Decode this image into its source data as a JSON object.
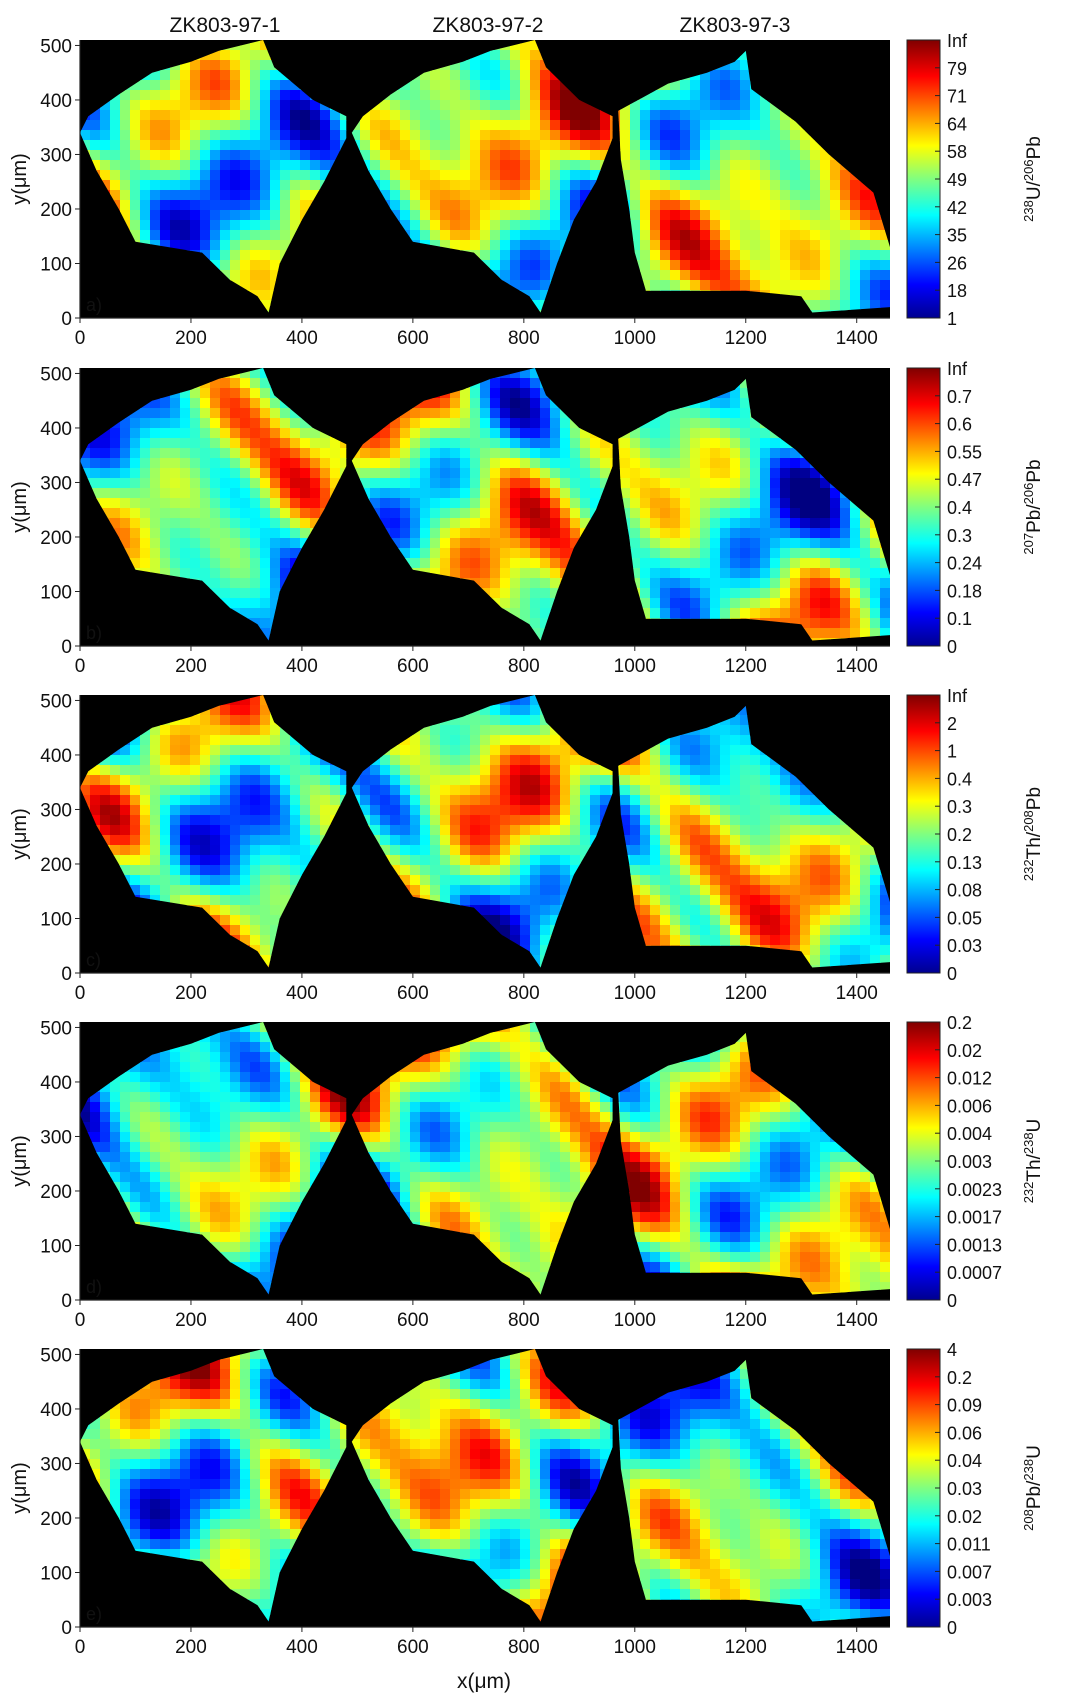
{
  "figure": {
    "sample_titles": [
      "ZK803-97-1",
      "ZK803-97-2",
      "ZK803-97-3"
    ],
    "xlabel": "x(μm)",
    "ylabel": "y(μm)",
    "x_ticks": [
      0,
      200,
      400,
      600,
      800,
      1000,
      1200,
      1400
    ],
    "y_ticks": [
      0,
      100,
      200,
      300,
      400,
      500
    ],
    "xlim": [
      0,
      1460
    ],
    "ylim": [
      0,
      510
    ],
    "background_color": "#000000",
    "colormap": "jet",
    "grain_outlines": [
      [
        [
          0,
          340
        ],
        [
          15,
          370
        ],
        [
          70,
          410
        ],
        [
          130,
          450
        ],
        [
          200,
          470
        ],
        [
          250,
          490
        ],
        [
          330,
          510
        ],
        [
          350,
          460
        ],
        [
          420,
          400
        ],
        [
          480,
          370
        ],
        [
          480,
          330
        ],
        [
          440,
          250
        ],
        [
          400,
          180
        ],
        [
          360,
          100
        ],
        [
          340,
          10
        ],
        [
          320,
          40
        ],
        [
          270,
          70
        ],
        [
          220,
          120
        ],
        [
          100,
          140
        ],
        [
          70,
          200
        ],
        [
          30,
          270
        ]
      ],
      [
        [
          490,
          340
        ],
        [
          510,
          370
        ],
        [
          560,
          410
        ],
        [
          620,
          450
        ],
        [
          690,
          470
        ],
        [
          740,
          490
        ],
        [
          820,
          510
        ],
        [
          840,
          460
        ],
        [
          900,
          400
        ],
        [
          960,
          370
        ],
        [
          960,
          330
        ],
        [
          930,
          250
        ],
        [
          890,
          180
        ],
        [
          860,
          100
        ],
        [
          830,
          10
        ],
        [
          810,
          40
        ],
        [
          760,
          70
        ],
        [
          710,
          120
        ],
        [
          600,
          140
        ],
        [
          560,
          200
        ],
        [
          520,
          270
        ]
      ],
      [
        [
          970,
          380
        ],
        [
          1060,
          430
        ],
        [
          1130,
          450
        ],
        [
          1180,
          470
        ],
        [
          1200,
          490
        ],
        [
          1210,
          420
        ],
        [
          1250,
          390
        ],
        [
          1290,
          360
        ],
        [
          1350,
          300
        ],
        [
          1430,
          230
        ],
        [
          1460,
          130
        ],
        [
          1460,
          20
        ],
        [
          1320,
          10
        ],
        [
          1300,
          40
        ],
        [
          1200,
          50
        ],
        [
          1020,
          50
        ],
        [
          1000,
          120
        ],
        [
          990,
          200
        ],
        [
          975,
          290
        ]
      ]
    ]
  },
  "chart_data": [
    {
      "type": "heatmap",
      "panel_label": "a)",
      "colorbar_label": {
        "sup1": "238",
        "base1": "U/",
        "sup2": "206",
        "base2": "Pb"
      },
      "colorbar_ticks": [
        "1",
        "18",
        "26",
        "35",
        "42",
        "49",
        "58",
        "64",
        "71",
        "79",
        "Inf"
      ],
      "seed": 11
    },
    {
      "type": "heatmap",
      "panel_label": "b)",
      "colorbar_label": {
        "sup1": "207",
        "base1": "Pb/",
        "sup2": "206",
        "base2": "Pb"
      },
      "colorbar_ticks": [
        "0",
        "0.1",
        "0.18",
        "0.24",
        "0.3",
        "0.4",
        "0.47",
        "0.55",
        "0.6",
        "0.7",
        "Inf"
      ],
      "seed": 23
    },
    {
      "type": "heatmap",
      "panel_label": "c)",
      "colorbar_label": {
        "sup1": "232",
        "base1": "Th/",
        "sup2": "208",
        "base2": "Pb"
      },
      "colorbar_ticks": [
        "0",
        "0.03",
        "0.05",
        "0.08",
        "0.13",
        "0.2",
        "0.3",
        "0.4",
        "1",
        "2",
        "Inf"
      ],
      "seed": 37
    },
    {
      "type": "heatmap",
      "panel_label": "d)",
      "colorbar_label": {
        "sup1": "232",
        "base1": "Th/",
        "sup2": "238",
        "base2": "U"
      },
      "colorbar_ticks": [
        "0",
        "0.0007",
        "0.0013",
        "0.0017",
        "0.0023",
        "0.003",
        "0.004",
        "0.006",
        "0.012",
        "0.02",
        "0.2"
      ],
      "seed": 41
    },
    {
      "type": "heatmap",
      "panel_label": "e)",
      "colorbar_label": {
        "sup1": "208",
        "base1": "Pb/",
        "sup2": "238",
        "base2": "U"
      },
      "colorbar_ticks": [
        "0",
        "0.003",
        "0.007",
        "0.011",
        "0.02",
        "0.03",
        "0.04",
        "0.06",
        "0.09",
        "0.2",
        "4"
      ],
      "seed": 53
    }
  ]
}
